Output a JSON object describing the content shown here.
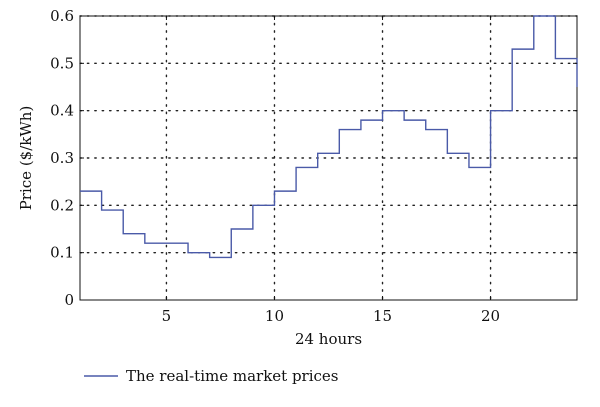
{
  "chart_data": {
    "type": "line",
    "step": "post",
    "title": "",
    "xlabel": "24 hours",
    "ylabel": "Price ($/kWh)",
    "xlim": [
      1,
      24
    ],
    "ylim": [
      0,
      0.6
    ],
    "x_ticks": [
      5,
      10,
      15,
      20
    ],
    "y_ticks": [
      0,
      0.1,
      0.2,
      0.3,
      0.4,
      0.5,
      0.6
    ],
    "grid": true,
    "grid_style": "dotted",
    "legend_position": "bottom-left",
    "series": [
      {
        "name": "The real-time market prices",
        "color": "#4a5aa8",
        "x": [
          1,
          2,
          3,
          4,
          5,
          6,
          7,
          8,
          9,
          10,
          11,
          12,
          13,
          14,
          15,
          16,
          17,
          18,
          19,
          20,
          21,
          22,
          23,
          24
        ],
        "values": [
          0.23,
          0.19,
          0.14,
          0.12,
          0.12,
          0.1,
          0.09,
          0.15,
          0.2,
          0.23,
          0.28,
          0.31,
          0.36,
          0.38,
          0.4,
          0.38,
          0.36,
          0.31,
          0.28,
          0.4,
          0.53,
          0.6,
          0.51,
          0.45
        ]
      }
    ]
  }
}
